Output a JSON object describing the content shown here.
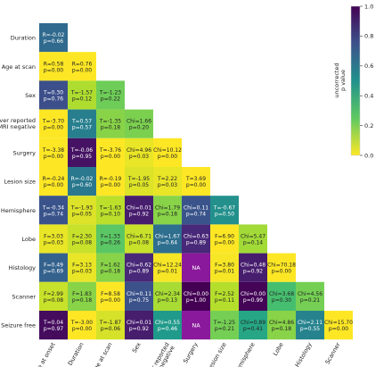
{
  "chart_data": {
    "type": "heatmap",
    "title": "",
    "xlabel": "",
    "ylabel": "",
    "row_labels": [
      "Duration",
      "Age at scan",
      "Sex",
      "Ever reported MRI negative",
      "Surgery",
      "Lesion size",
      "Hemisphere",
      "Lobe",
      "Histology",
      "Scanner",
      "Seizure free"
    ],
    "col_labels": [
      "Age at onset",
      "Duration",
      "Age at scan",
      "Sex",
      "Ever reported MRI negative",
      "Surgery",
      "Lesion size",
      "Hemisphere",
      "Lobe",
      "Histology",
      "Scanner"
    ],
    "cells": [
      [
        {
          "text": "R=-0.02\np=0.66",
          "p": 0.66
        }
      ],
      [
        {
          "text": "R=0.58\np=0.00",
          "p": 0.0
        },
        {
          "text": "R=0.76\np=0.00",
          "p": 0.0
        }
      ],
      [
        {
          "text": "T=0.30\np=0.76",
          "p": 0.76
        },
        {
          "text": "T=-1.57\np=0.12",
          "p": 0.12
        },
        {
          "text": "T=-1.23\np=0.22",
          "p": 0.22
        }
      ],
      [
        {
          "text": "T=-3.70\np=0.00",
          "p": 0.0
        },
        {
          "text": "T=0.57\np=0.57",
          "p": 0.57
        },
        {
          "text": "T=-1.35\np=0.18",
          "p": 0.18
        },
        {
          "text": "Chi=1.66\np=0.20",
          "p": 0.2
        }
      ],
      [
        {
          "text": "T=-3.38\np=0.00",
          "p": 0.0
        },
        {
          "text": "T=-0.06\np=0.95",
          "p": 0.95
        },
        {
          "text": "T=-3.76\np=0.00",
          "p": 0.0
        },
        {
          "text": "Chi=4.96\np=0.03",
          "p": 0.03
        },
        {
          "text": "Chi=10.12\np=0.00",
          "p": 0.0
        }
      ],
      [
        {
          "text": "R=-0.24\np=0.00",
          "p": 0.0
        },
        {
          "text": "R=-0.02\np=0.60",
          "p": 0.6
        },
        {
          "text": "R=-0.19\np=0.00",
          "p": 0.0
        },
        {
          "text": "T=-1.95\np=0.05",
          "p": 0.05
        },
        {
          "text": "T=2.22\np=0.03",
          "p": 0.03
        },
        {
          "text": "T=3.69\np=0.00",
          "p": 0.0
        }
      ],
      [
        {
          "text": "T=-0.34\np=0.74",
          "p": 0.74
        },
        {
          "text": "T=-1.93\np=0.05",
          "p": 0.05
        },
        {
          "text": "T=-1.63\np=0.10",
          "p": 0.1
        },
        {
          "text": "Chi=0.01\np=0.92",
          "p": 0.92
        },
        {
          "text": "Chi=1.79\np=0.18",
          "p": 0.18
        },
        {
          "text": "Chi=0.11\np=0.74",
          "p": 0.74
        },
        {
          "text": "T=-0.67\np=0.50",
          "p": 0.5
        }
      ],
      [
        {
          "text": "F=3.03\np=0.03",
          "p": 0.03
        },
        {
          "text": "F=2.30\np=0.08",
          "p": 0.08
        },
        {
          "text": "F=1.33\np=0.26",
          "p": 0.26
        },
        {
          "text": "Chi=6.71\np=0.08",
          "p": 0.08
        },
        {
          "text": "Chi=1.67\np=0.64",
          "p": 0.64
        },
        {
          "text": "Chi=0.63\np=0.89",
          "p": 0.89
        },
        {
          "text": "F=6.90\np=0.00",
          "p": 0.0
        },
        {
          "text": "Chi=5.47\np=0.14",
          "p": 0.14
        }
      ],
      [
        {
          "text": "F=0.49\np=0.69",
          "p": 0.69
        },
        {
          "text": "F=3.13\np=0.03",
          "p": 0.03
        },
        {
          "text": "F=1.62\np=0.18",
          "p": 0.18
        },
        {
          "text": "Chi=0.62\np=0.89",
          "p": 0.89
        },
        {
          "text": "Chi=12.24\np=0.01",
          "p": 0.01
        },
        {
          "text": "NA",
          "p": null
        },
        {
          "text": "F=3.80\np=0.01",
          "p": 0.01
        },
        {
          "text": "Chi=0.48\np=0.92",
          "p": 0.92
        },
        {
          "text": "Chi=70.18\np=0.00",
          "p": 0.0
        }
      ],
      [
        {
          "text": "F=2.99\np=0.08",
          "p": 0.08
        },
        {
          "text": "F=1.83\np=0.18",
          "p": 0.18
        },
        {
          "text": "F=8.58\np=0.00",
          "p": 0.0
        },
        {
          "text": "Chi=0.11\np=0.75",
          "p": 0.75
        },
        {
          "text": "Chi=2.34\np=0.13",
          "p": 0.13
        },
        {
          "text": "Chi=0.00\np=1.00",
          "p": 1.0
        },
        {
          "text": "F=2.52\np=0.11",
          "p": 0.11
        },
        {
          "text": "Chi=0.00\np=0.99",
          "p": 0.99
        },
        {
          "text": "Chi=3.68\np=0.30",
          "p": 0.3
        },
        {
          "text": "Chi=4.56\np=0.21",
          "p": 0.21
        }
      ],
      [
        {
          "text": "T=0.04\np=0.97",
          "p": 0.97
        },
        {
          "text": "T=-3.00\np=0.00",
          "p": 0.0
        },
        {
          "text": "T=-1.87\np=0.06",
          "p": 0.06
        },
        {
          "text": "Chi=0.01\np=0.92",
          "p": 0.92
        },
        {
          "text": "Chi=0.55\np=0.46",
          "p": 0.46
        },
        {
          "text": "NA",
          "p": null
        },
        {
          "text": "T=-1.25\np=0.21",
          "p": 0.21
        },
        {
          "text": "Chi=0.89\np=0.41",
          "p": 0.41
        },
        {
          "text": "Chi=4.86\np=0.18",
          "p": 0.18
        },
        {
          "text": "Chi=2.11\np=0.55",
          "p": 0.55
        },
        {
          "text": "Chi=15.70\np=0.00",
          "p": 0.0
        }
      ]
    ],
    "na_color": "#8a1a9b",
    "colorbar": {
      "label": "uncorrected\np value",
      "range": [
        0.0,
        1.0
      ],
      "ticks": [
        "0.0",
        "0.2",
        "0.4",
        "0.6",
        "0.8",
        "1.0"
      ],
      "colormap": "viridis_r"
    },
    "grid": false
  }
}
